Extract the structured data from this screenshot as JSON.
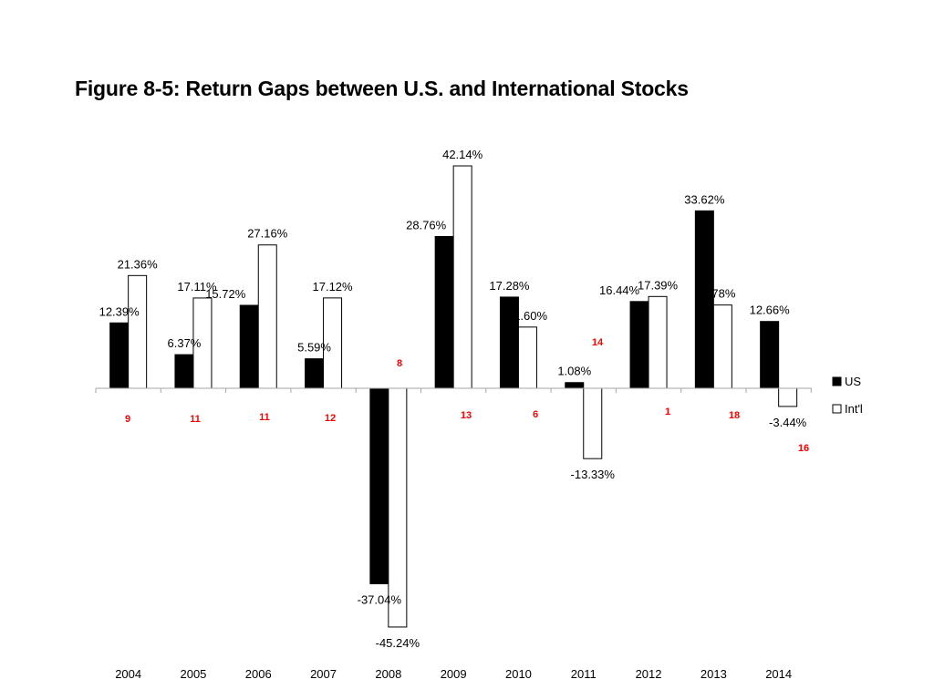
{
  "title": "Figure 8-5: Return Gaps between U.S. and International Stocks",
  "chart_data": {
    "type": "bar",
    "categories": [
      "2004",
      "2005",
      "2006",
      "2007",
      "2008",
      "2009",
      "2010",
      "2011",
      "2012",
      "2013",
      "2014"
    ],
    "series": [
      {
        "name": "US",
        "color": "#000000",
        "values": [
          12.39,
          6.37,
          15.72,
          5.59,
          -37.04,
          28.76,
          17.28,
          1.08,
          16.44,
          33.62,
          12.66
        ],
        "labels": [
          "12.39%",
          "6.37%",
          "15.72%",
          "5.59%",
          "-37.04%",
          "28.76%",
          "17.28%",
          "1.08%",
          "16.44%",
          "33.62%",
          "12.66%"
        ]
      },
      {
        "name": "Int'l",
        "color": "#ffffff",
        "values": [
          21.36,
          17.11,
          27.16,
          17.12,
          -45.24,
          42.14,
          11.6,
          -13.33,
          17.39,
          15.78,
          -3.44
        ],
        "labels": [
          "21.36%",
          "17.11%",
          "27.16%",
          "17.12%",
          "-45.24%",
          "42.14%",
          "11.60%",
          "-13.33%",
          "17.39%",
          "15.78%",
          "-3.44%"
        ]
      }
    ],
    "annotations": [
      "9",
      "11",
      "11",
      "12",
      "8",
      "13",
      "6",
      "14",
      "1",
      "18",
      "16"
    ],
    "annotation_color": "#ff0000",
    "ylim": [
      -50,
      45
    ],
    "grid": false,
    "legend": "right",
    "xlabel": "",
    "ylabel": ""
  }
}
